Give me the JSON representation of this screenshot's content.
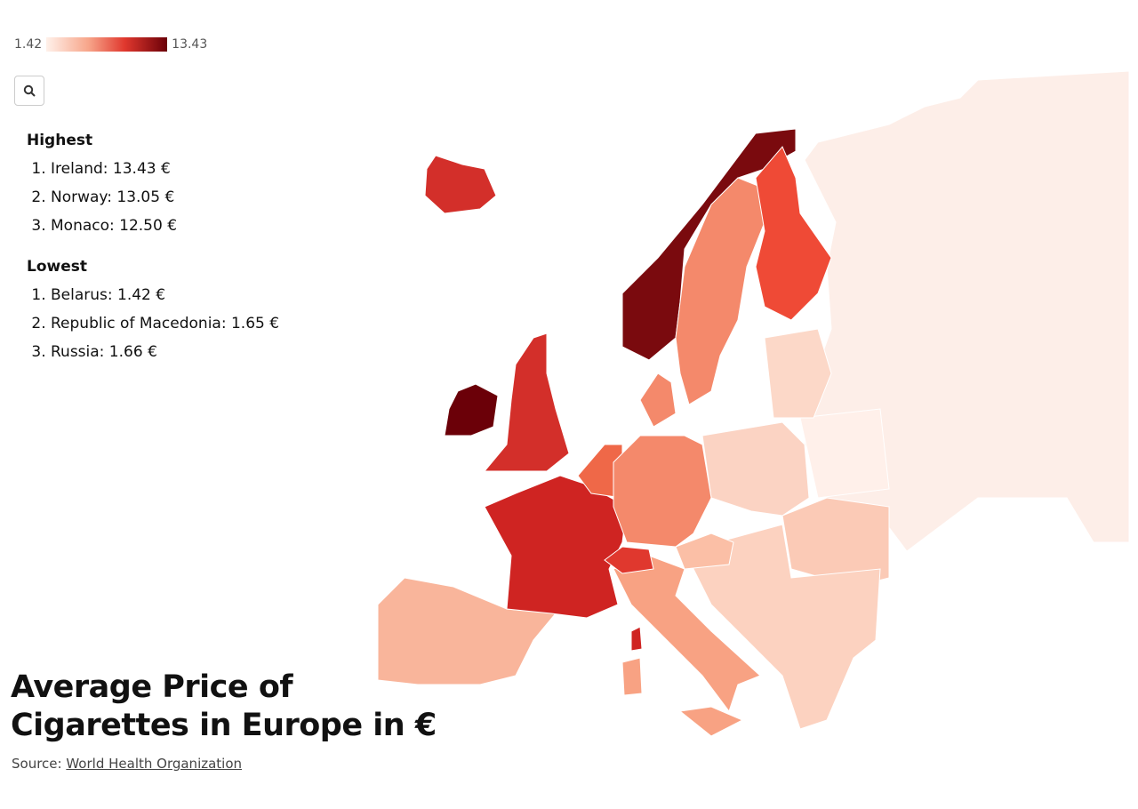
{
  "legend": {
    "min": 1.42,
    "max": 13.43
  },
  "highest": {
    "title": "Highest",
    "items": [
      "Ireland: 13.43 €",
      "Norway: 13.05 €",
      "Monaco: 12.50 €"
    ]
  },
  "lowest": {
    "title": "Lowest",
    "items": [
      "Belarus: 1.42 €",
      "Republic of Macedonia: 1.65 €",
      "Russia: 1.66 €"
    ]
  },
  "title": [
    "Average Price of",
    "Cigarettes in Europe in €"
  ],
  "source": {
    "label": "Source:",
    "link": "World Health Organization"
  }
}
